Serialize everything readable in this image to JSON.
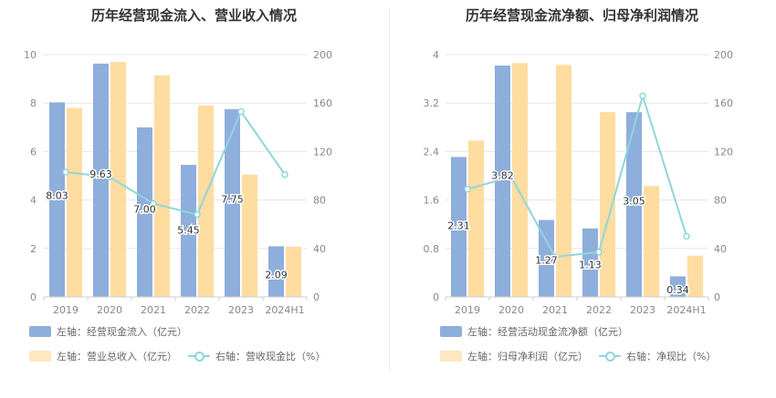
{
  "colors": {
    "bar_primary": "#8eaedc",
    "bar_secondary": "#ffdca0",
    "line": "#8fd6dc",
    "grid": "#e6e6e6",
    "axis_text": "#888888"
  },
  "chart_data": [
    {
      "type": "bar",
      "title": "历年经营现金流入、营业收入情况",
      "categories": [
        "2019",
        "2020",
        "2021",
        "2022",
        "2023",
        "2024H1"
      ],
      "left_axis": {
        "ylim": [
          0,
          10
        ],
        "ticks": [
          "0",
          "2",
          "4",
          "6",
          "8",
          "10"
        ]
      },
      "right_axis": {
        "ylim": [
          0,
          200
        ],
        "ticks": [
          "0",
          "40",
          "80",
          "120",
          "160",
          "200"
        ]
      },
      "series": [
        {
          "name": "左轴：经营现金流入（亿元）",
          "kind": "bar",
          "axis": "left",
          "values": [
            8.03,
            9.63,
            7.0,
            5.45,
            7.75,
            2.09
          ],
          "labels": [
            "8.03",
            "9.63",
            "7.00",
            "5.45",
            "7.75",
            "2.09"
          ]
        },
        {
          "name": "左轴：营业总收入（亿元）",
          "kind": "bar",
          "axis": "left",
          "values": [
            7.8,
            9.7,
            9.15,
            7.9,
            5.05,
            2.07
          ]
        },
        {
          "name": "右轴：营收现金比（%）",
          "kind": "line",
          "axis": "right",
          "values": [
            103,
            99,
            77,
            68,
            153,
            101
          ]
        }
      ],
      "grid": true,
      "legend_position": "bottom-left"
    },
    {
      "type": "bar",
      "title": "历年经营现金流净额、归母净利润情况",
      "categories": [
        "2019",
        "2020",
        "2021",
        "2022",
        "2023",
        "2024H1"
      ],
      "left_axis": {
        "ylim": [
          0,
          4
        ],
        "ticks": [
          "0",
          "0.8",
          "1.6",
          "2.4",
          "3.2",
          "4"
        ]
      },
      "right_axis": {
        "ylim": [
          0,
          200
        ],
        "ticks": [
          "0",
          "40",
          "80",
          "120",
          "160",
          "200"
        ]
      },
      "series": [
        {
          "name": "左轴：经营活动现金流净额（亿元）",
          "kind": "bar",
          "axis": "left",
          "values": [
            2.31,
            3.82,
            1.27,
            1.13,
            3.05,
            0.34
          ],
          "labels": [
            "2.31",
            "3.82",
            "1.27",
            "1.13",
            "3.05",
            "0.34"
          ]
        },
        {
          "name": "左轴：归母净利润（亿元）",
          "kind": "bar",
          "axis": "left",
          "values": [
            2.58,
            3.86,
            3.83,
            3.05,
            1.83,
            0.68
          ]
        },
        {
          "name": "右轴：净现比（%）",
          "kind": "line",
          "axis": "right",
          "values": [
            89,
            99,
            33,
            37,
            166,
            50
          ]
        }
      ],
      "grid": true,
      "legend_position": "bottom-left"
    }
  ]
}
